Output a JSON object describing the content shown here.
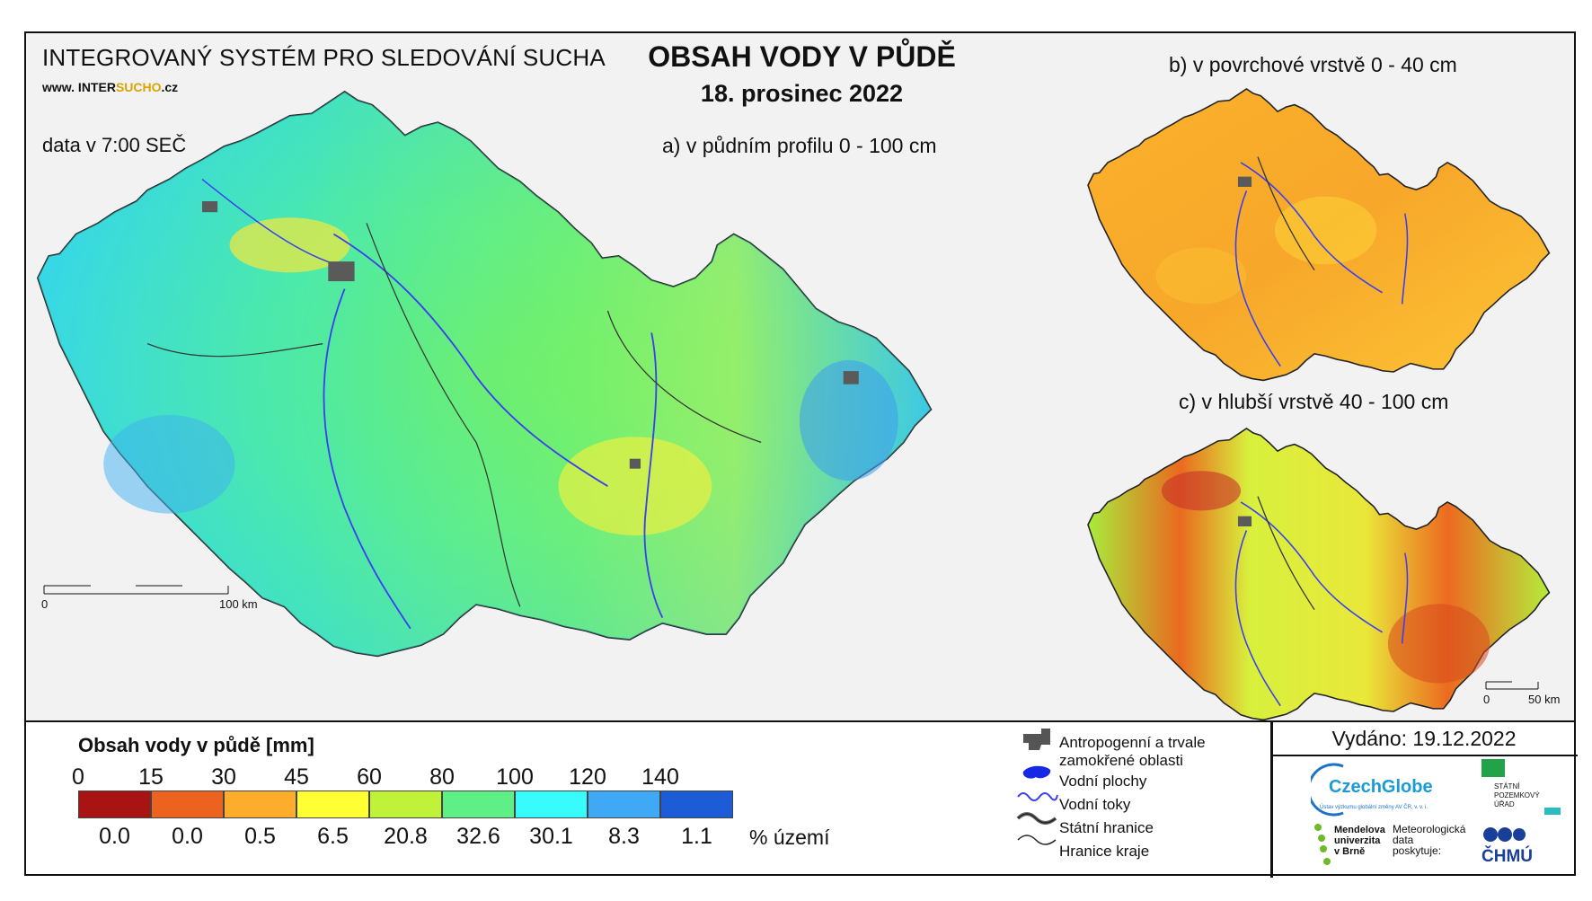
{
  "header": {
    "system_title": "INTEGROVANÝ SYSTÉM PRO SLEDOVÁNÍ SUCHA",
    "website_prefix": "www. INTER",
    "website_highlight": "SUCHO",
    "website_suffix": ".cz",
    "data_time": "data v 7:00 SEČ",
    "main_title": "OBSAH VODY V PŮDĚ",
    "main_date": "18. prosinec 2022"
  },
  "maps": {
    "a_title": "a) v půdním profilu 0 - 100 cm",
    "b_title": "b) v povrchové vrstvě 0 - 40 cm",
    "c_title": "c) v hlubší vrstvě 40 - 100 cm",
    "scale_main": {
      "start": "0",
      "end": "100 km"
    },
    "scale_small": {
      "start": "0",
      "end": "50 km"
    }
  },
  "legend": {
    "title": "Obsah vody v půdě  [mm]",
    "ticks": [
      "0",
      "15",
      "30",
      "45",
      "60",
      "80",
      "100",
      "120",
      "140"
    ],
    "colors": [
      "#a81414",
      "#ec6320",
      "#fbad2b",
      "#ffff33",
      "#c0f23a",
      "#5fef87",
      "#38fcfc",
      "#3fa9f5",
      "#1c5cd6"
    ],
    "percentages": [
      "0.0",
      "0.0",
      "0.5",
      "6.5",
      "20.8",
      "32.6",
      "30.1",
      "8.3",
      "1.1"
    ],
    "pct_unit": "% území",
    "symbols": [
      {
        "icon": "urban-area-icon",
        "label": "Antropogenní a trvale zamokřené oblasti"
      },
      {
        "icon": "water-body-icon",
        "label": "Vodní plochy"
      },
      {
        "icon": "river-icon",
        "label": "Vodní toky"
      },
      {
        "icon": "state-border-icon",
        "label": "Státní hranice"
      },
      {
        "icon": "region-border-icon",
        "label": "Hranice kraje"
      }
    ]
  },
  "footer": {
    "issued": "Vydáno: 19.12.2022",
    "czechglobe": "CzechGlobe",
    "czechglobe_sub": "Ústav výzkumu globální změny AV ČR, v. v. i.",
    "spu": "STÁTNÍ POZEMKOVÝ ÚŘAD",
    "mendel": "Mendelova univerzita v Brně",
    "meteo": "Meteorologická data poskytuje:",
    "chmu": "ČHMÚ"
  },
  "colors": {
    "river": "#3a3ff0",
    "border": "#333333",
    "urban": "#5a5a5a"
  }
}
